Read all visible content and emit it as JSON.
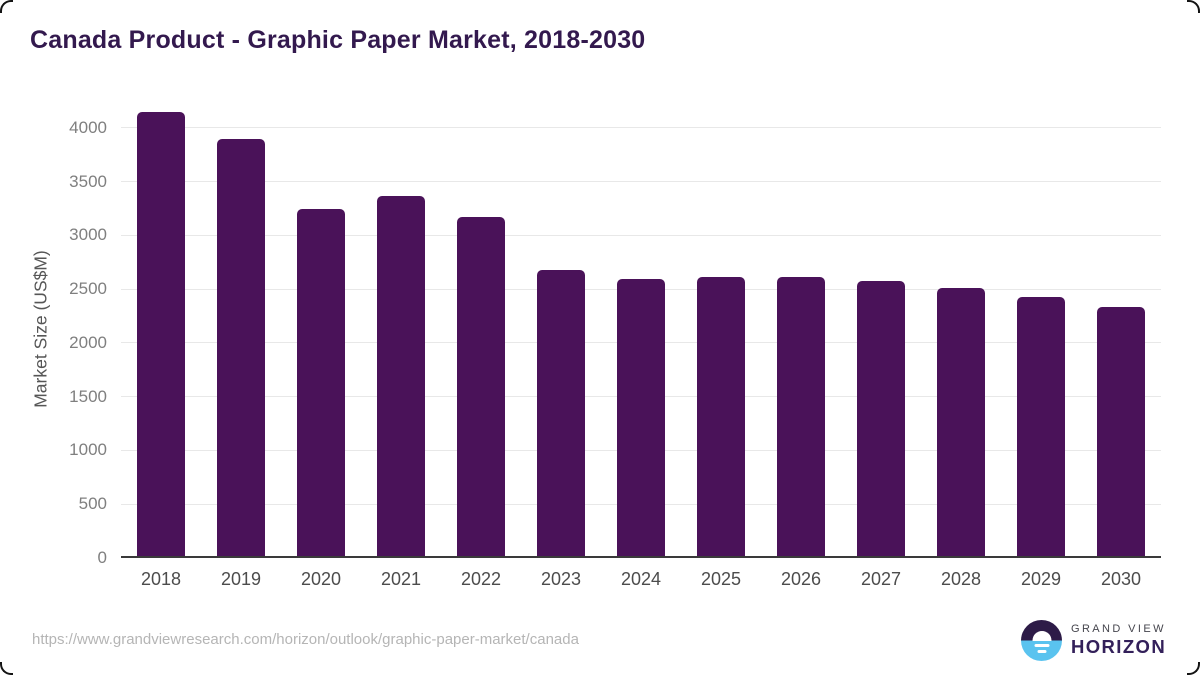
{
  "chart_data": {
    "type": "bar",
    "title": "Canada Product - Graphic Paper Market, 2018-2030",
    "categories": [
      "2018",
      "2019",
      "2020",
      "2021",
      "2022",
      "2023",
      "2024",
      "2025",
      "2026",
      "2027",
      "2028",
      "2029",
      "2030"
    ],
    "values": [
      4150,
      3900,
      3250,
      3365,
      3170,
      2680,
      2595,
      2610,
      2615,
      2575,
      2510,
      2430,
      2335
    ],
    "xlabel": "",
    "ylabel": "Market Size (US$M)",
    "ylim": [
      0,
      4260
    ],
    "yticks": [
      0,
      500,
      1000,
      1500,
      2000,
      2500,
      3000,
      3500,
      4000
    ],
    "grid": "horizontal",
    "legend": "none",
    "bar_color": "#4a1259",
    "title_color": "#33194e",
    "gridline_color": "#e8e8e8",
    "axis_line_color": "#3a3a3a"
  },
  "footer": {
    "source_url": "https://www.grandviewresearch.com/horizon/outlook/graphic-paper-market/canada",
    "logo_line1": "GRAND VIEW",
    "logo_line2": "HORIZON",
    "logo_navy": "#2d1b47",
    "logo_blue": "#5ac3ef"
  }
}
